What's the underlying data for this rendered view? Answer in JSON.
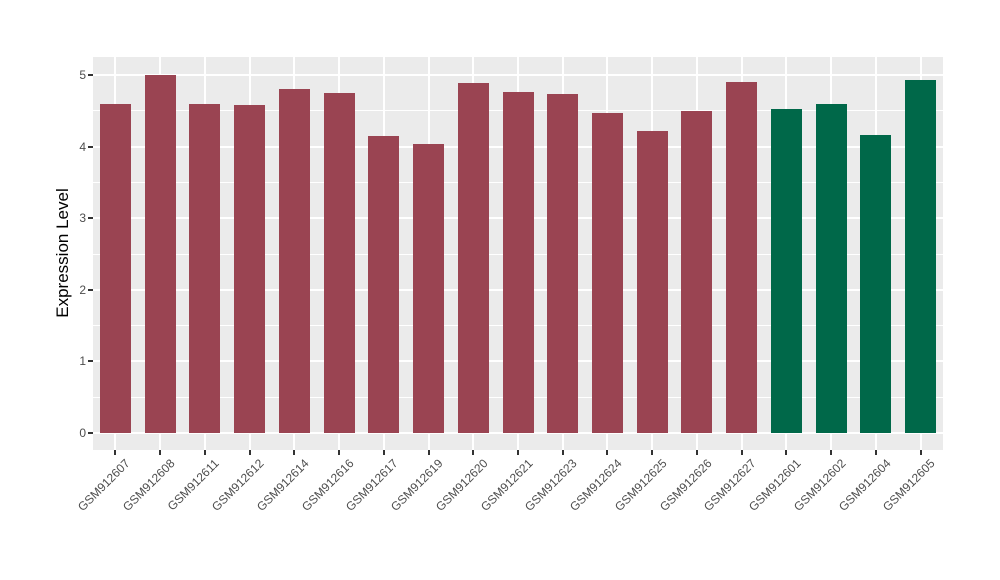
{
  "chart_data": {
    "type": "bar",
    "title": "",
    "xlabel": "",
    "ylabel": "Expression Level",
    "ylim": [
      0,
      5.25
    ],
    "yticks": [
      0,
      1,
      2,
      3,
      4,
      5
    ],
    "grid": true,
    "legend": null,
    "categories": [
      "GSM912607",
      "GSM912608",
      "GSM912611",
      "GSM912612",
      "GSM912614",
      "GSM912616",
      "GSM912617",
      "GSM912619",
      "GSM912620",
      "GSM912621",
      "GSM912623",
      "GSM912624",
      "GSM912625",
      "GSM912626",
      "GSM912627",
      "GSM912601",
      "GSM912602",
      "GSM912604",
      "GSM912605"
    ],
    "values": [
      4.6,
      5.0,
      4.59,
      4.58,
      4.81,
      4.75,
      4.15,
      4.03,
      4.89,
      4.76,
      4.74,
      4.47,
      4.22,
      4.5,
      4.9,
      4.53,
      4.6,
      4.16,
      4.93
    ],
    "bar_groups": [
      "maroon",
      "maroon",
      "maroon",
      "maroon",
      "maroon",
      "maroon",
      "maroon",
      "maroon",
      "maroon",
      "maroon",
      "maroon",
      "maroon",
      "maroon",
      "maroon",
      "maroon",
      "green",
      "green",
      "green",
      "green"
    ],
    "group_colors": {
      "maroon": "#9A4452",
      "green": "#006849"
    }
  },
  "colors": {
    "figure_bg": "#FFFFFF",
    "panel_bg": "#EBEBEB",
    "gridline": "#FFFFFF",
    "axis_text": "#4D4D4D",
    "axis_title": "#000000",
    "tick_mark": "#333333"
  }
}
